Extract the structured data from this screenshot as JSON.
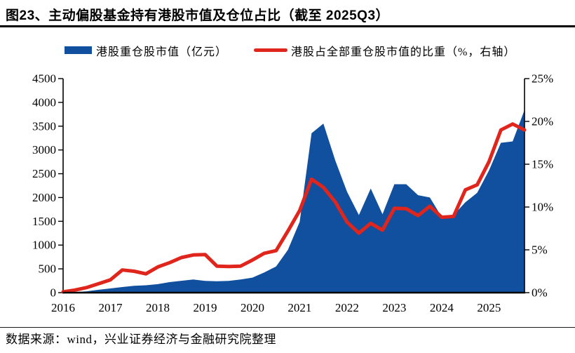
{
  "title": "图23、主动偏股基金持有港股市值及仓位占比（截至 2025Q3）",
  "source": "数据来源：wind，兴业证券经济与金融研究院整理",
  "colors": {
    "area_blue": "#10509E",
    "line_red": "#E0251C",
    "axis_black": "#000000"
  },
  "legend": [
    {
      "label": "港股重仓股市值（亿元）",
      "type": "area",
      "color": "#10509E"
    },
    {
      "label": "港股占全部重仓股市值的比重（%，右轴）",
      "type": "line",
      "color": "#E0251C"
    }
  ],
  "chart_data": {
    "type": "area",
    "title": "主动偏股基金持有港股市值及仓位占比",
    "x_labels": [
      "2016",
      "2017",
      "2018",
      "2019",
      "2020",
      "2021",
      "2022",
      "2023",
      "2024",
      "2025"
    ],
    "categories": [
      "2015Q4",
      "2016Q1",
      "2016Q2",
      "2016Q3",
      "2016Q4",
      "2017Q1",
      "2017Q2",
      "2017Q3",
      "2017Q4",
      "2018Q1",
      "2018Q2",
      "2018Q3",
      "2018Q4",
      "2019Q1",
      "2019Q2",
      "2019Q3",
      "2019Q4",
      "2020Q1",
      "2020Q2",
      "2020Q3",
      "2020Q4",
      "2021Q1",
      "2021Q2",
      "2021Q3",
      "2021Q4",
      "2022Q1",
      "2022Q2",
      "2022Q3",
      "2022Q4",
      "2023Q1",
      "2023Q2",
      "2023Q3",
      "2023Q4",
      "2024Q1",
      "2024Q2",
      "2024Q3",
      "2024Q4",
      "2025Q1",
      "2025Q2",
      "2025Q3"
    ],
    "series": [
      {
        "name": "港股重仓股市值（亿元）",
        "type": "area",
        "axis": "left",
        "color": "#10509E",
        "values": [
          5,
          12,
          28,
          60,
          88,
          118,
          143,
          155,
          178,
          222,
          250,
          276,
          248,
          240,
          246,
          276,
          315,
          425,
          550,
          900,
          1490,
          3350,
          3555,
          2780,
          2120,
          1630,
          2190,
          1650,
          2280,
          2280,
          2050,
          2000,
          1590,
          1630,
          1900,
          2100,
          2570,
          3150,
          3180,
          3840
        ]
      },
      {
        "name": "港股占全部重仓股市值的比重（%，右轴）",
        "type": "line",
        "axis": "right",
        "color": "#E0251C",
        "values": [
          0.1,
          0.3,
          0.6,
          1.05,
          1.5,
          2.65,
          2.5,
          2.2,
          3.0,
          3.5,
          4.1,
          4.4,
          4.45,
          3.1,
          3.05,
          3.1,
          3.8,
          4.6,
          4.9,
          7.2,
          9.6,
          13.25,
          12.3,
          10.6,
          8.25,
          6.95,
          8.1,
          7.3,
          9.85,
          9.8,
          9.0,
          10.1,
          8.8,
          8.9,
          12.0,
          12.6,
          15.3,
          19.0,
          19.7,
          19.0
        ]
      }
    ],
    "left_axis": {
      "min": 0,
      "max": 4500,
      "step": 500,
      "suffix": ""
    },
    "right_axis": {
      "min": 0,
      "max": 25,
      "step": 5,
      "suffix": "%"
    },
    "grid": "off",
    "legend_position": "top"
  }
}
